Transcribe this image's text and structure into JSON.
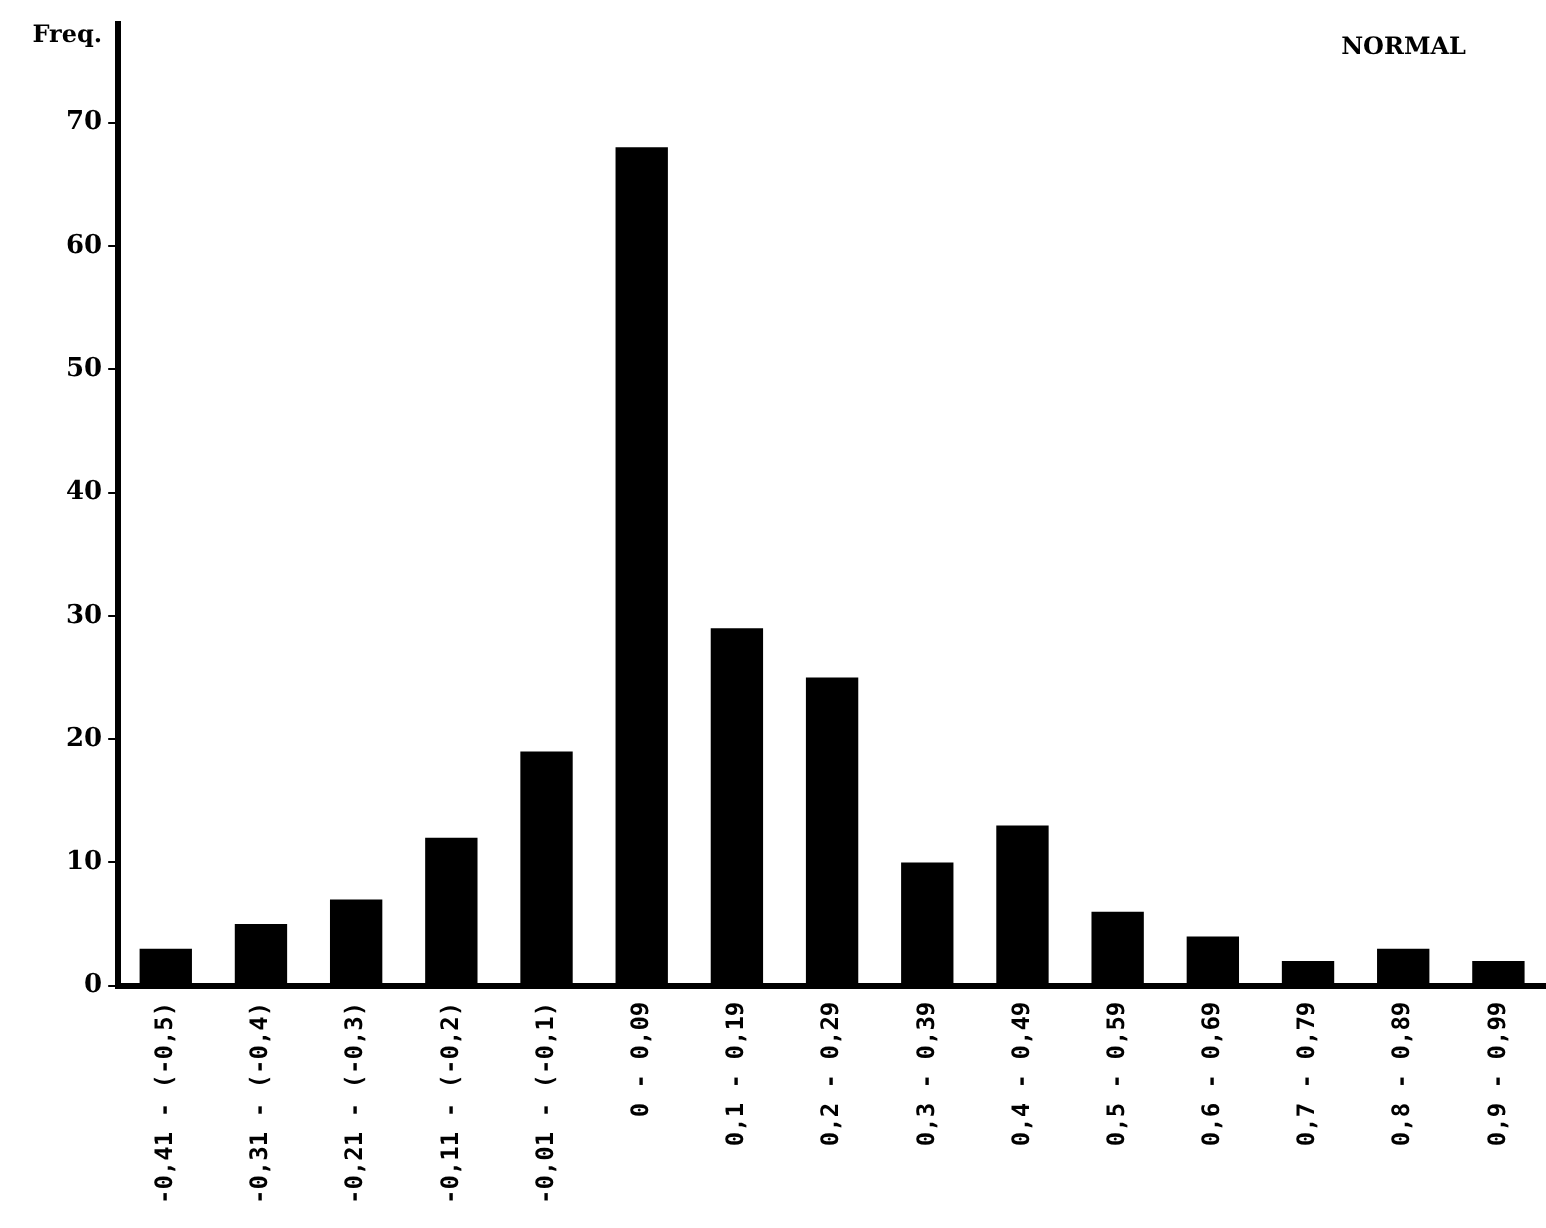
{
  "chart_data": {
    "type": "bar",
    "title": "NORMAL",
    "ylabel": "Freq.",
    "categories": [
      "-0,41 - (-0,5)",
      "-0,31 - (-0,4)",
      "-0,21 - (-0,3)",
      "-0,11 - (-0,2)",
      "-0,01 - (-0,1)",
      "0 - 0,09",
      "0,1 - 0,19",
      "0,2 - 0,29",
      "0,3 - 0,39",
      "0,4 - 0,49",
      "0,5 - 0,59",
      "0,6 - 0,69",
      "0,7 - 0,79",
      "0,8 - 0,89",
      "0,9 - 0,99"
    ],
    "values": [
      3,
      5,
      7,
      12,
      19,
      68,
      29,
      25,
      10,
      13,
      6,
      4,
      2,
      3,
      2
    ],
    "color": "#000000",
    "ylim": [
      0,
      78
    ],
    "yticks": [
      0,
      10,
      20,
      30,
      40,
      50,
      60,
      70
    ],
    "grid": false
  }
}
